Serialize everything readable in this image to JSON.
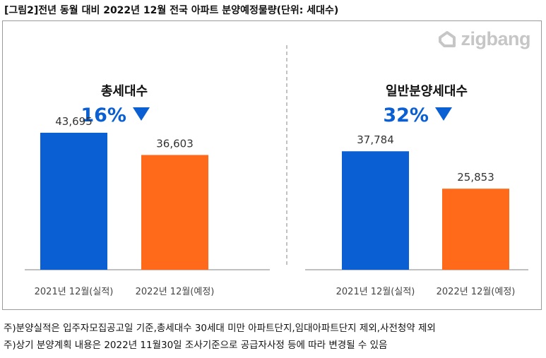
{
  "title": "[그림2]전년 동월 대비 2022년 12월 전국 아파트 분양예정물량(단위: 세대수)",
  "logo": {
    "text": "zigbang",
    "icon": "zigbang-logo-icon"
  },
  "notes": [
    "주)분양실적은 입주자모집공고일 기준,총세대수 30세대 미만 아파트단지,임대아파트단지 제외,사전청약 제외",
    "주)상기 분양계획 내용은 2022년 11월30일 조사기준으로 공급자사정 등에 따라 변경될 수 있음"
  ],
  "colors": {
    "blue": "#0A5FD3",
    "orange": "#FF6A1A",
    "axis": "#9a9a9a"
  },
  "chart_data": [
    {
      "type": "bar",
      "title": "총세대수",
      "change": "16%",
      "change_icon": "down-triangle-icon",
      "categories": [
        "2021년 12월(실적)",
        "2022년 12월(예정)"
      ],
      "values": [
        43695,
        36603
      ],
      "value_labels": [
        "43,695",
        "36,603"
      ],
      "ylim": [
        0,
        50000
      ]
    },
    {
      "type": "bar",
      "title": "일반분양세대수",
      "change": "32%",
      "change_icon": "down-triangle-icon",
      "categories": [
        "2021년 12월(실적)",
        "2022년 12월(예정)"
      ],
      "values": [
        37784,
        25853
      ],
      "value_labels": [
        "37,784",
        "25,853"
      ],
      "ylim": [
        0,
        50000
      ]
    }
  ]
}
